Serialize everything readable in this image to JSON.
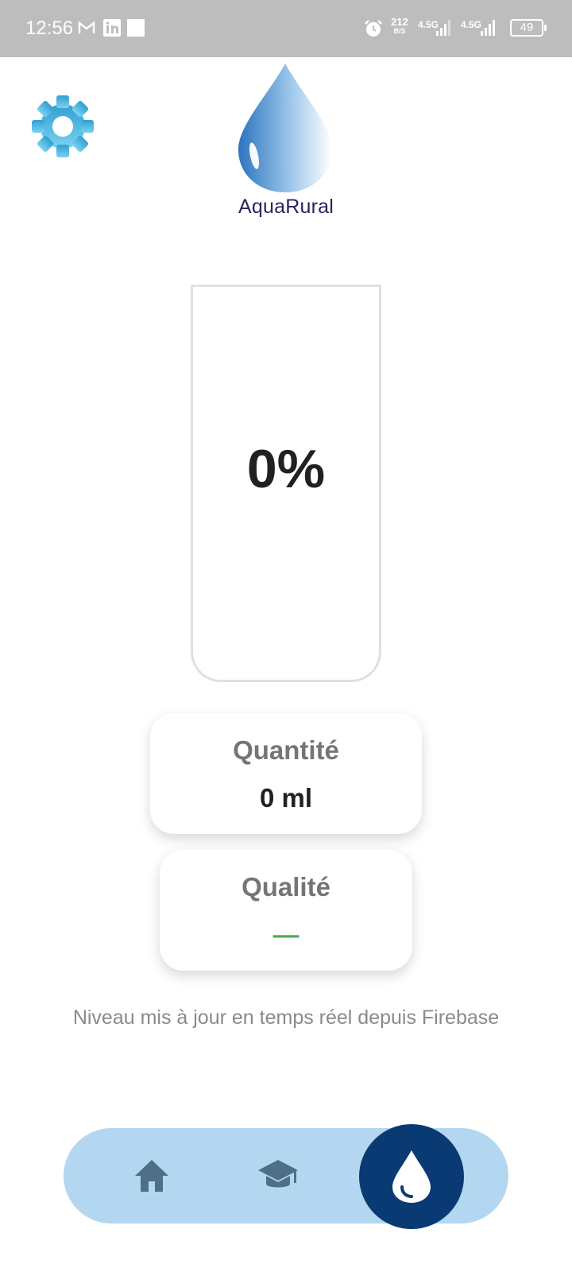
{
  "status_bar": {
    "time": "12:56",
    "net_speed_value": "212",
    "net_speed_unit": "B/S",
    "sim1_label": "4.5G",
    "sim2_label": "4.5G",
    "battery": "49",
    "icons": [
      "gmail-icon",
      "linkedin-icon",
      "square-icon",
      "alarm-icon",
      "signal-icon",
      "battery-icon"
    ]
  },
  "header": {
    "app_name": "AquaRural",
    "settings_icon": "gear-icon",
    "logo_icon": "water-drop-logo",
    "accent_color": "#4aa8dc"
  },
  "tank": {
    "level_percent": 0,
    "level_label": "0%"
  },
  "cards": {
    "quantity": {
      "label": "Quantité",
      "value": "0 ml"
    },
    "quality": {
      "label": "Qualité",
      "value": "—",
      "value_color": "#4caf50"
    }
  },
  "footnote": "Niveau mis à jour en temps réel depuis Firebase",
  "bottom_nav": {
    "items": [
      {
        "name": "home",
        "icon": "home-icon",
        "active": false
      },
      {
        "name": "learn",
        "icon": "graduation-cap-icon",
        "active": false
      },
      {
        "name": "water",
        "icon": "water-drop-icon",
        "active": true
      }
    ],
    "bar_color": "#b3d7f0",
    "active_color": "#0a3a73"
  }
}
